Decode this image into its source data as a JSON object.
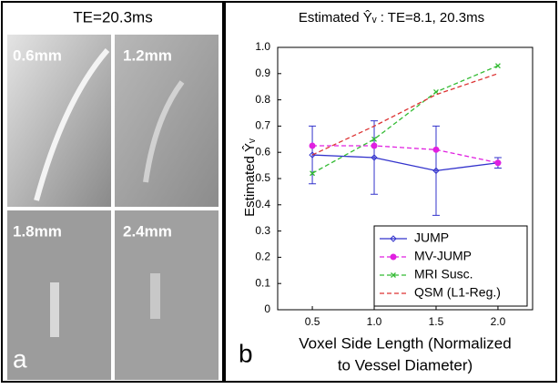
{
  "panel_a": {
    "title": "TE=20.3ms",
    "label": "a",
    "images": [
      {
        "label": "0.6mm"
      },
      {
        "label": "1.2mm"
      },
      {
        "label": "1.8mm"
      },
      {
        "label": "2.4mm"
      }
    ]
  },
  "chart_data": {
    "type": "line",
    "panel_label": "b",
    "title": "Estimated Ŷᵥ : TE=8.1, 20.3ms",
    "y_label": "Estimated Ŷᵥ",
    "x_label": [
      "Voxel Side Length (Normalized",
      "to Vessel Diameter)"
    ],
    "x": [
      0.5,
      1.0,
      1.5,
      2.0
    ],
    "xlim": [
      0.22,
      2.28
    ],
    "xticks": [
      0.5,
      {
        "value": 1,
        "label": "1.0"
      },
      1.5,
      {
        "value": 2,
        "label": "2.0"
      }
    ],
    "ylim": [
      0,
      1
    ],
    "yticks": [
      0,
      0.1,
      0.2,
      0.3,
      0.4,
      0.5,
      0.6,
      0.7,
      0.8,
      0.9,
      {
        "value": 1,
        "label": "1.0"
      }
    ],
    "legend": "lower right",
    "series": [
      {
        "name": "JUMP",
        "color": "#3333cc",
        "dash": "solid",
        "marker": "diamond",
        "values": [
          0.59,
          0.58,
          0.53,
          0.56
        ],
        "errors": [
          0.11,
          0.14,
          0.17,
          0.02
        ]
      },
      {
        "name": "MV-JUMP",
        "color": "#e020e0",
        "dash": "dashed",
        "marker": "circle",
        "values": [
          0.625,
          0.625,
          0.61,
          0.56
        ]
      },
      {
        "name": "MRI Susc.",
        "color": "#33bb33",
        "dash": "dashed",
        "marker": "x",
        "values": [
          0.52,
          0.65,
          0.83,
          0.93
        ]
      },
      {
        "name": "QSM (L1-Reg.)",
        "color": "#dd3333",
        "dash": "dashed",
        "marker": "none",
        "values": [
          0.59,
          0.7,
          0.82,
          0.9
        ]
      }
    ]
  }
}
